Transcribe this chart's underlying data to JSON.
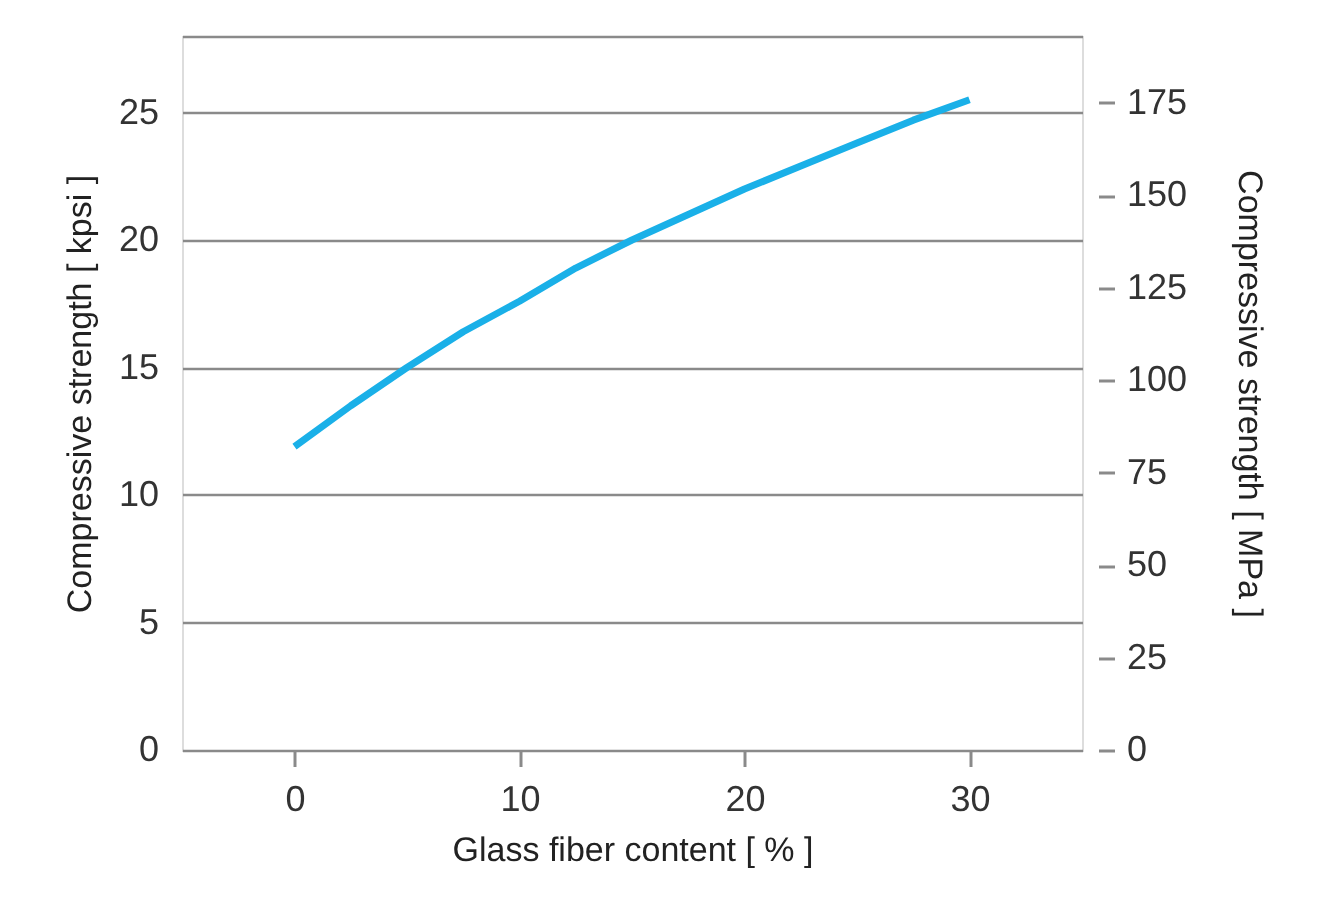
{
  "chart_data": {
    "type": "line",
    "xlabel": "Glass fiber content [ % ]",
    "ylabel": "Compressive strength [ kpsi ]",
    "y2label": "Compressive strength [ MPa ]",
    "x": [
      0,
      2.5,
      5,
      7.5,
      10,
      12.5,
      15,
      17.5,
      20,
      22.5,
      25,
      27.5,
      30
    ],
    "series": [
      {
        "color": "#1ab0e8",
        "values": [
          11.9,
          13.5,
          15.0,
          16.4,
          17.6,
          18.9,
          20.0,
          21.0,
          22.0,
          22.9,
          23.8,
          24.7,
          25.5
        ]
      }
    ],
    "xlim": [
      -5,
      35
    ],
    "xticks": [
      0,
      10,
      20,
      30
    ],
    "ylim": [
      0,
      28
    ],
    "yticks": [
      0,
      5,
      10,
      15,
      20,
      25,
      {
        "value": 28,
        "label": null
      }
    ],
    "y2lim": [
      0,
      193.1
    ],
    "y2ticks": [
      0,
      25,
      50,
      75,
      100,
      125,
      150,
      175
    ],
    "grid": "y",
    "marker": "none",
    "line_style": "solid"
  }
}
